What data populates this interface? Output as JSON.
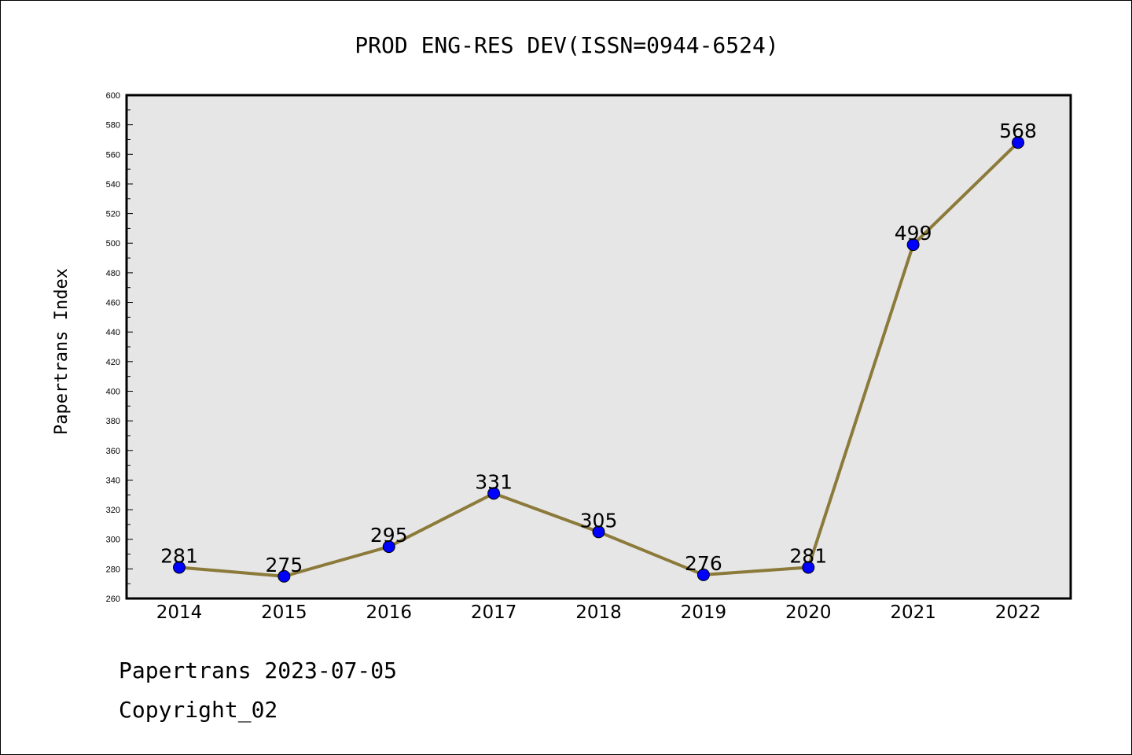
{
  "chart_data": {
    "type": "line",
    "title": "PROD ENG-RES DEV(ISSN=0944-6524)",
    "xlabel": "",
    "ylabel": "Papertrans Index",
    "categories": [
      "2014",
      "2015",
      "2016",
      "2017",
      "2018",
      "2019",
      "2020",
      "2021",
      "2022"
    ],
    "series": [
      {
        "values": [
          281,
          275,
          295,
          331,
          305,
          276,
          281,
          499,
          568
        ]
      }
    ],
    "data_labels": [
      "281",
      "275",
      "295",
      "331",
      "305",
      "276",
      "281",
      "499",
      "568"
    ],
    "ylim": [
      260,
      600
    ],
    "y_ticks": [
      "260",
      "280",
      "300",
      "320",
      "340",
      "360",
      "380",
      "400",
      "420",
      "440",
      "460",
      "480",
      "500",
      "520",
      "540",
      "560",
      "580",
      "600"
    ],
    "grid": false,
    "legend": "none",
    "colors": {
      "line": "#8b7a3a",
      "marker": "#0000ff",
      "plot_background": "#e6e6e6",
      "frame": "#000000"
    }
  },
  "footer": {
    "line1": "Papertrans 2023-07-05",
    "line2": "Copyright_02"
  }
}
